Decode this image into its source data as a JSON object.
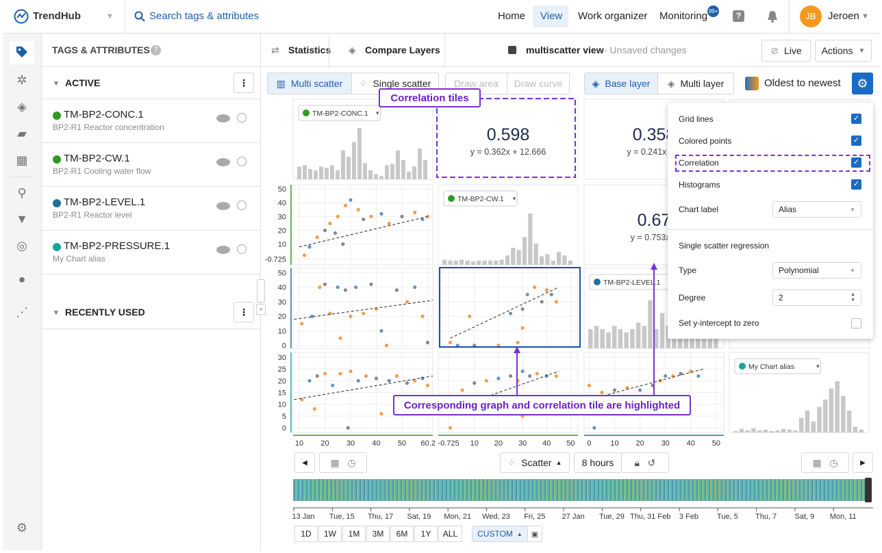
{
  "header": {
    "brand": "TrendHub",
    "search": "Search tags & attributes",
    "nav": [
      "Home",
      "View",
      "Work organizer",
      "Monitoring"
    ],
    "badge": "99+",
    "avatar": "JB",
    "user": "Jeroen"
  },
  "sidebar": {
    "title": "TAGS & ATTRIBUTES",
    "active": "ACTIVE",
    "recent": "RECENTLY USED",
    "tags": [
      {
        "name": "TM-BP2-CONC.1",
        "description": "BP2-R1 Reactor concentration",
        "color": "#2e9a1f"
      },
      {
        "name": "TM-BP2-CW.1",
        "description": "BP2-R1 Cooling water flow",
        "color": "#2e9a1f"
      },
      {
        "name": "TM-BP2-LEVEL.1",
        "description": "BP2-R1 Reactor level",
        "color": "#1f6e99"
      },
      {
        "name": "TM-BP2-PRESSURE.1",
        "description": "My Chart alias",
        "color": "#17a59a"
      }
    ]
  },
  "toolbar": {
    "statistics": "Statistics",
    "compare": "Compare Layers",
    "view_name": "multiscatter view",
    "unsaved": "- Unsaved changes",
    "live": "Live",
    "actions": "Actions"
  },
  "modes": {
    "multi_scatter": "Multi scatter",
    "single_scatter": "Single scatter",
    "draw_area": "Draw area",
    "draw_curve": "Draw curve",
    "base_layer": "Base layer",
    "multi_layer": "Multi layer",
    "order": "Oldest to newest"
  },
  "settings": {
    "options": [
      {
        "label": "Grid lines",
        "checked": true
      },
      {
        "label": "Colored points",
        "checked": true
      },
      {
        "label": "Correlation",
        "checked": true
      },
      {
        "label": "Histograms",
        "checked": true
      }
    ],
    "chart_label": {
      "label": "Chart label",
      "value": "Alias"
    },
    "regression_title": "Single scatter regression",
    "type": {
      "label": "Type",
      "value": "Polynomial"
    },
    "degree": {
      "label": "Degree",
      "value": "2"
    },
    "intercept": {
      "label": "Set y-intercept to zero",
      "checked": false
    }
  },
  "matrix": {
    "point_colors": [
      "#f0923a",
      "#5b87b5",
      "#f0923a",
      "#7a7a7a"
    ],
    "variables": [
      {
        "color": "#2e9a1f",
        "lim": [
          7.6,
          62
        ],
        "ticks": [
          10,
          20,
          30,
          40,
          50,
          60.2
        ]
      },
      {
        "color": "#2e9a1f",
        "lim": [
          -5,
          53
        ],
        "ticks": [
          -0.725,
          10,
          20,
          30,
          40,
          50
        ]
      },
      {
        "color": "#1f6e99",
        "lim": [
          -2,
          53
        ],
        "ticks": [
          0,
          10,
          20,
          30,
          40,
          50
        ]
      },
      {
        "color": "#17a59a",
        "lim": [
          -2,
          32
        ],
        "ticks": [
          0,
          5,
          10,
          15,
          20,
          25,
          30
        ]
      }
    ],
    "tiles": [
      [
        {
          "label": "TM-BP2-CONC.1",
          "histogram": [
            20,
            22,
            16,
            14,
            20,
            18,
            22,
            14,
            45,
            35,
            58,
            80,
            25,
            14,
            8,
            5,
            22,
            24,
            45,
            30,
            12,
            20,
            48,
            30
          ]
        },
        {
          "value": "0.598",
          "equation": "y = 0.362x + 12.666"
        },
        {
          "value": "0.358",
          "equation": "y = 0.241x + 1"
        },
        null
      ],
      [
        {
          "points": [
            [
              12,
              2
            ],
            [
              14,
              8
            ],
            [
              17,
              15
            ],
            [
              20,
              20
            ],
            [
              22,
              25
            ],
            [
              24,
              18
            ],
            [
              25,
              30
            ],
            [
              27,
              10
            ],
            [
              28,
              38
            ],
            [
              30,
              42
            ],
            [
              33,
              35
            ],
            [
              35,
              28
            ],
            [
              38,
              30
            ],
            [
              42,
              32
            ],
            [
              45,
              25
            ],
            [
              50,
              30
            ],
            [
              55,
              33
            ],
            [
              58,
              28
            ],
            [
              60,
              30
            ]
          ],
          "trend": [
            [
              10,
              8
            ],
            [
              60,
              30
            ]
          ]
        },
        {
          "label": "TM-BP2-CW.1",
          "histogram": [
            12,
            10,
            10,
            12,
            10,
            8,
            10,
            10,
            10,
            10,
            12,
            22,
            40,
            35,
            65,
            120,
            50,
            20,
            25,
            10,
            30,
            22,
            10
          ]
        },
        {
          "value": "0.67",
          "equation": "y = 0.753x +"
        },
        null
      ],
      [
        {
          "points": [
            [
              11,
              15
            ],
            [
              15,
              20
            ],
            [
              18,
              40
            ],
            [
              20,
              42
            ],
            [
              22,
              22
            ],
            [
              25,
              40
            ],
            [
              26,
              5
            ],
            [
              28,
              38
            ],
            [
              30,
              20
            ],
            [
              32,
              40
            ],
            [
              35,
              22
            ],
            [
              38,
              42
            ],
            [
              40,
              25
            ],
            [
              42,
              10
            ],
            [
              44,
              0
            ],
            [
              48,
              38
            ],
            [
              52,
              30
            ],
            [
              55,
              40
            ],
            [
              58,
              20
            ],
            [
              60,
              2
            ]
          ],
          "trend": [
            [
              8,
              18
            ],
            [
              62,
              31
            ]
          ]
        },
        {
          "points": [
            [
              0,
              2
            ],
            [
              3,
              0
            ],
            [
              8,
              20
            ],
            [
              10,
              0
            ],
            [
              20,
              0
            ],
            [
              25,
              22
            ],
            [
              28,
              2
            ],
            [
              30,
              25
            ],
            [
              30,
              12
            ],
            [
              32,
              35
            ],
            [
              35,
              40
            ],
            [
              38,
              30
            ],
            [
              40,
              38
            ],
            [
              42,
              35
            ],
            [
              44,
              30
            ]
          ],
          "trend": [
            [
              0,
              5
            ],
            [
              45,
              40
            ]
          ]
        },
        {
          "label": "TM-BP2-LEVEL.1",
          "histogram": [
            12,
            14,
            12,
            10,
            14,
            12,
            10,
            12,
            16,
            14,
            30,
            12,
            22,
            14,
            10,
            28,
            12,
            10,
            32,
            20,
            12,
            10
          ]
        },
        null
      ],
      [
        {
          "points": [
            [
              11,
              12
            ],
            [
              14,
              20
            ],
            [
              16,
              8
            ],
            [
              17,
              22
            ],
            [
              20,
              23
            ],
            [
              23,
              18
            ],
            [
              26,
              23
            ],
            [
              29,
              0
            ],
            [
              30,
              24
            ],
            [
              33,
              20
            ],
            [
              36,
              22
            ],
            [
              40,
              21
            ],
            [
              42,
              6
            ],
            [
              45,
              20
            ],
            [
              48,
              22
            ],
            [
              52,
              19
            ],
            [
              55,
              20
            ],
            [
              58,
              21
            ],
            [
              60,
              18
            ]
          ],
          "trend": [
            [
              8,
              12
            ],
            [
              62,
              22
            ]
          ]
        },
        {
          "points": [
            [
              0,
              0
            ],
            [
              2,
              12
            ],
            [
              5,
              16
            ],
            [
              10,
              19
            ],
            [
              15,
              20
            ],
            [
              20,
              21
            ],
            [
              22,
              10
            ],
            [
              25,
              22
            ],
            [
              28,
              20
            ],
            [
              30,
              24
            ],
            [
              30,
              5
            ],
            [
              33,
              22
            ],
            [
              36,
              23
            ],
            [
              40,
              22
            ],
            [
              44,
              22
            ]
          ],
          "trend": [
            [
              -2,
              7
            ],
            [
              45,
              24
            ]
          ]
        },
        {
          "points": [
            [
              0,
              18
            ],
            [
              2,
              0
            ],
            [
              5,
              15
            ],
            [
              10,
              16
            ],
            [
              15,
              17
            ],
            [
              20,
              16
            ],
            [
              22,
              10
            ],
            [
              25,
              18
            ],
            [
              28,
              20
            ],
            [
              30,
              22
            ],
            [
              33,
              22
            ],
            [
              36,
              23
            ],
            [
              40,
              24
            ],
            [
              43,
              22
            ]
          ],
          "trend": [
            [
              0,
              12
            ],
            [
              45,
              25
            ]
          ]
        },
        {
          "label": "My Chart alias",
          "histogram": [
            2,
            5,
            3,
            6,
            3,
            4,
            2,
            3,
            5,
            4,
            3,
            20,
            30,
            15,
            35,
            45,
            60,
            70,
            50,
            30,
            8,
            4
          ]
        }
      ]
    ]
  },
  "annotations": {
    "tiles": "Correlation tiles",
    "highlight": "Corresponding graph and correlation tile are highlighted"
  },
  "footer": {
    "chart_type": "Scatter",
    "duration": "8 hours",
    "dates": [
      "13 Jan",
      "Tue, 15",
      "Thu, 17",
      "Sat, 19",
      "Mon, 21",
      "Wed, 23",
      "Fri, 25",
      "27 Jan",
      "Tue, 29",
      "Thu, 31 Feb",
      "3 Feb",
      "Tue, 5",
      "Thu, 7",
      "Sat, 9",
      "Mon, 11"
    ],
    "ranges": [
      "1D",
      "1W",
      "1M",
      "3M",
      "6M",
      "1Y",
      "ALL"
    ],
    "custom": "CUSTOM"
  }
}
